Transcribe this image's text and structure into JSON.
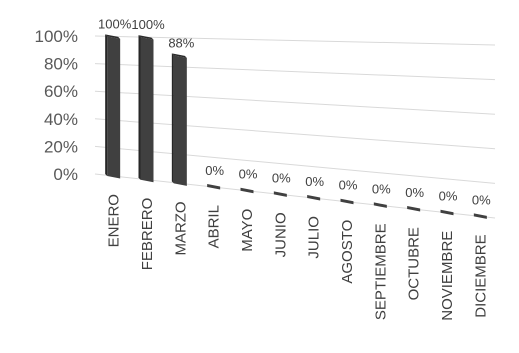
{
  "chart_data": {
    "type": "bar",
    "categories": [
      "ENERO",
      "FEBRERO",
      "MARZO",
      "ABRIL",
      "MAYO",
      "JUNIO",
      "JULIO",
      "AGOSTO",
      "SEPTIEMBRE",
      "OCTUBRE",
      "NOVIEMBRE",
      "DICIEMBRE"
    ],
    "values": [
      100,
      100,
      88,
      0,
      0,
      0,
      0,
      0,
      0,
      0,
      0,
      0
    ],
    "data_labels": [
      "100%",
      "100%",
      "88%",
      "0%",
      "0%",
      "0%",
      "0%",
      "0%",
      "0%",
      "0%",
      "0%",
      "0%"
    ],
    "y_ticks": [
      "0%",
      "20%",
      "40%",
      "60%",
      "80%",
      "100%"
    ],
    "ylim": [
      0,
      100
    ],
    "title": "",
    "xlabel": "",
    "ylabel": "",
    "grid": true,
    "legend": "none",
    "bar_color": "#404040",
    "three_d": true
  }
}
